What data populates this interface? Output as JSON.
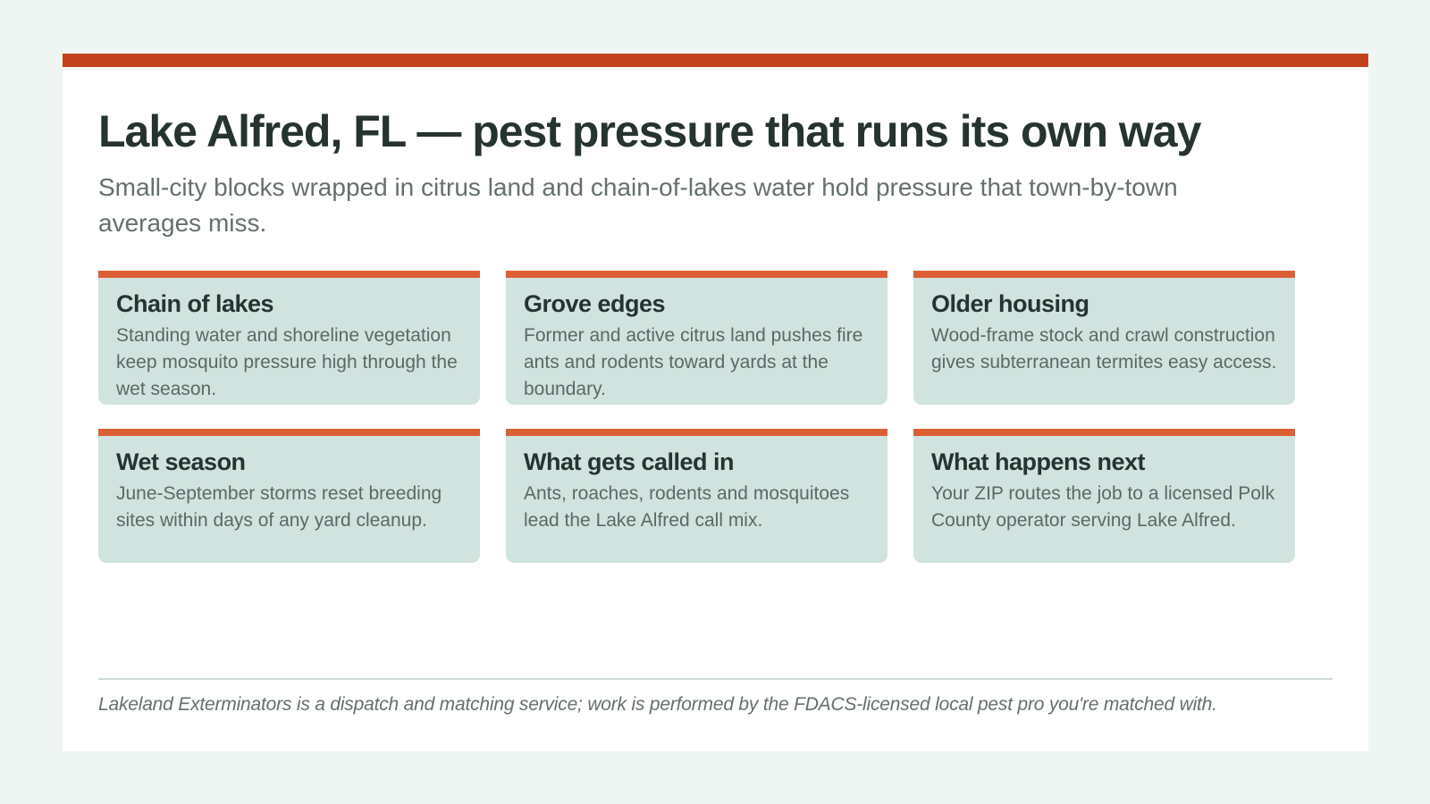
{
  "colors": {
    "page_background": "#eff5f3",
    "card_background": "#ffffff",
    "accent_bar": "#c2421d",
    "tile_accent": "#dc5f34",
    "tile_background": "#d0e3de",
    "heading_text": "#253331",
    "body_text": "#5c6866"
  },
  "header": {
    "title": "Lake Alfred, FL — pest pressure that runs its own way",
    "subtitle": "Small-city blocks wrapped in citrus land and chain-of-lakes water hold pressure that town-by-town averages miss."
  },
  "tiles": [
    {
      "title": "Chain of lakes",
      "body": "Standing water and shoreline vegetation keep mosquito pressure high through the wet season."
    },
    {
      "title": "Grove edges",
      "body": "Former and active citrus land pushes fire ants and rodents toward yards at the boundary."
    },
    {
      "title": "Older housing",
      "body": "Wood-frame stock and crawl construction gives subterranean termites easy access."
    },
    {
      "title": "Wet season",
      "body": "June-September storms reset breeding sites within days of any yard cleanup."
    },
    {
      "title": "What gets called in",
      "body": "Ants, roaches, rodents and mosquitoes lead the Lake Alfred call mix."
    },
    {
      "title": "What happens next",
      "body": "Your ZIP routes the job to a licensed Polk County operator serving Lake Alfred."
    }
  ],
  "footer": {
    "disclaimer": "Lakeland Exterminators is a dispatch and matching service; work is performed by the FDACS-licensed local pest pro you're matched with."
  }
}
